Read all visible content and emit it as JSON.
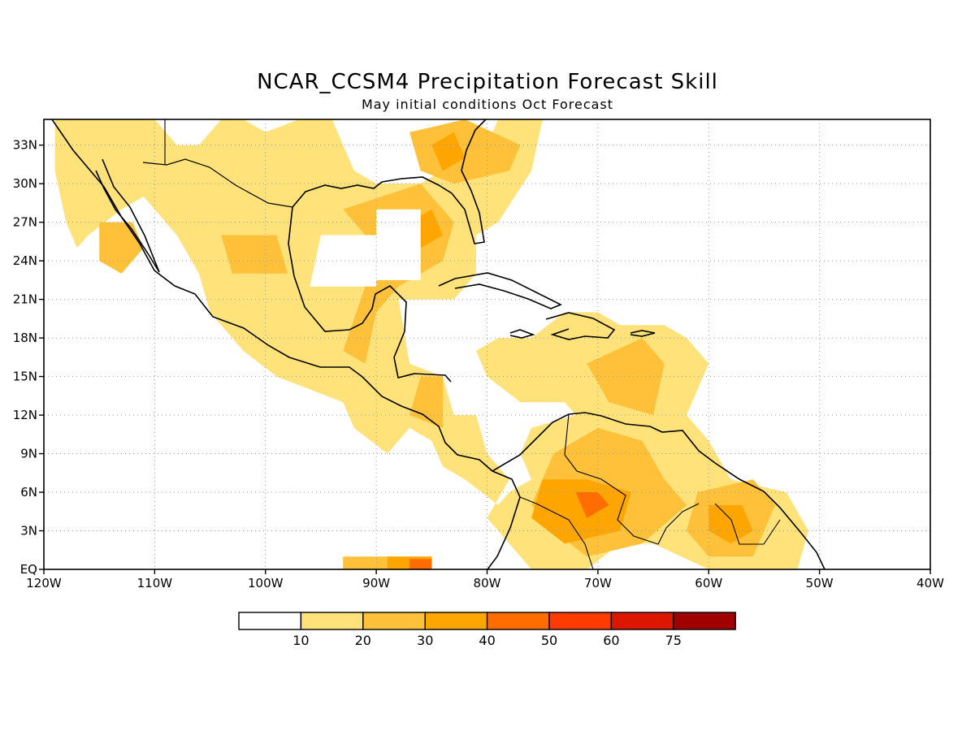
{
  "title": "NCAR_CCSM4 Precipitation Forecast Skill",
  "subtitle": "May initial conditions  Oct Forecast",
  "map": {
    "extent": {
      "lon": [
        -120,
        -40
      ],
      "lat": [
        0,
        35
      ]
    },
    "lon_ticks": [
      {
        "value": -120,
        "label": "120W"
      },
      {
        "value": -110,
        "label": "110W"
      },
      {
        "value": -100,
        "label": "100W"
      },
      {
        "value": -90,
        "label": "90W"
      },
      {
        "value": -80,
        "label": "80W"
      },
      {
        "value": -70,
        "label": "70W"
      },
      {
        "value": -60,
        "label": "60W"
      },
      {
        "value": -50,
        "label": "50W"
      },
      {
        "value": -40,
        "label": "40W"
      }
    ],
    "lat_ticks": [
      {
        "value": 0,
        "label": "EQ"
      },
      {
        "value": 3,
        "label": "3N"
      },
      {
        "value": 6,
        "label": "6N"
      },
      {
        "value": 9,
        "label": "9N"
      },
      {
        "value": 12,
        "label": "12N"
      },
      {
        "value": 15,
        "label": "15N"
      },
      {
        "value": 18,
        "label": "18N"
      },
      {
        "value": 21,
        "label": "21N"
      },
      {
        "value": 24,
        "label": "24N"
      },
      {
        "value": 27,
        "label": "27N"
      },
      {
        "value": 30,
        "label": "30N"
      },
      {
        "value": 33,
        "label": "33N"
      }
    ],
    "grid": "dotted",
    "colors": {
      "outline": "#000000",
      "grid": "#9a9a9a",
      "land_outline": "#000000"
    },
    "skill_regions": [
      {
        "level": 1,
        "coords": [
          [
            -119,
            35
          ],
          [
            -110,
            35
          ],
          [
            -108,
            33
          ],
          [
            -106,
            33
          ],
          [
            -104,
            35
          ],
          [
            -102,
            35
          ],
          [
            -100,
            34
          ],
          [
            -97,
            35
          ],
          [
            -94,
            35
          ],
          [
            -92,
            31
          ],
          [
            -90,
            30
          ],
          [
            -86,
            30
          ],
          [
            -84,
            31
          ],
          [
            -81,
            32
          ],
          [
            -80,
            33
          ],
          [
            -79,
            35
          ],
          [
            -75,
            35
          ],
          [
            -76,
            31
          ],
          [
            -79,
            27
          ],
          [
            -81,
            26
          ],
          [
            -81,
            23
          ],
          [
            -83,
            21
          ],
          [
            -88,
            21
          ],
          [
            -87,
            16
          ],
          [
            -84,
            15
          ],
          [
            -83,
            12
          ],
          [
            -81,
            12
          ],
          [
            -80,
            9
          ],
          [
            -78,
            7
          ],
          [
            -80,
            4
          ],
          [
            -78,
            2
          ],
          [
            -76,
            0
          ],
          [
            -71,
            0
          ],
          [
            -68,
            2
          ],
          [
            -65,
            2
          ],
          [
            -60,
            0
          ],
          [
            -52,
            0
          ],
          [
            -51,
            3
          ],
          [
            -53,
            6
          ],
          [
            -58,
            7
          ],
          [
            -60,
            10
          ],
          [
            -62,
            12
          ],
          [
            -61,
            14
          ],
          [
            -60,
            16
          ],
          [
            -62,
            18
          ],
          [
            -64,
            19
          ],
          [
            -68,
            19
          ],
          [
            -70,
            20
          ],
          [
            -73,
            20
          ],
          [
            -76,
            18
          ],
          [
            -79,
            18
          ],
          [
            -81,
            17
          ],
          [
            -80,
            15
          ],
          [
            -77,
            13
          ],
          [
            -73,
            13
          ],
          [
            -72,
            12
          ],
          [
            -76,
            11
          ],
          [
            -77,
            9
          ],
          [
            -76,
            7
          ],
          [
            -78,
            6
          ],
          [
            -79,
            5
          ],
          [
            -82,
            7
          ],
          [
            -84,
            8
          ],
          [
            -85,
            10
          ],
          [
            -87,
            11
          ],
          [
            -89,
            9
          ],
          [
            -92,
            11
          ],
          [
            -93,
            13
          ],
          [
            -96,
            14
          ],
          [
            -99,
            15
          ],
          [
            -102,
            17
          ],
          [
            -105,
            20
          ],
          [
            -106,
            23
          ],
          [
            -108,
            26
          ],
          [
            -111,
            29
          ],
          [
            -113,
            28
          ],
          [
            -116,
            26
          ],
          [
            -117,
            25
          ],
          [
            -118,
            27
          ],
          [
            -119,
            31
          ]
        ]
      },
      {
        "level": 2,
        "coords": [
          [
            -115,
            27
          ],
          [
            -112,
            27
          ],
          [
            -111,
            25
          ],
          [
            -113,
            23
          ],
          [
            -115,
            24
          ]
        ]
      },
      {
        "level": 2,
        "coords": [
          [
            -104,
            26
          ],
          [
            -99,
            26
          ],
          [
            -98,
            23
          ],
          [
            -103,
            23
          ]
        ]
      },
      {
        "level": 2,
        "coords": [
          [
            -93,
            28
          ],
          [
            -86,
            30
          ],
          [
            -83,
            27
          ],
          [
            -84,
            24
          ],
          [
            -88,
            22
          ],
          [
            -90,
            20
          ],
          [
            -91,
            16
          ],
          [
            -93,
            17
          ],
          [
            -91,
            22
          ],
          [
            -91,
            26
          ]
        ]
      },
      {
        "level": 2,
        "coords": [
          [
            -87,
            34
          ],
          [
            -82,
            35
          ],
          [
            -77,
            33
          ],
          [
            -78,
            31
          ],
          [
            -83,
            30
          ],
          [
            -86,
            31
          ]
        ]
      },
      {
        "level": 2,
        "coords": [
          [
            -86,
            15
          ],
          [
            -84,
            15
          ],
          [
            -84,
            11
          ],
          [
            -87,
            12
          ]
        ]
      },
      {
        "level": 2,
        "coords": [
          [
            -71,
            16
          ],
          [
            -66,
            18
          ],
          [
            -64,
            16
          ],
          [
            -65,
            12
          ],
          [
            -69,
            13
          ]
        ]
      },
      {
        "level": 2,
        "coords": [
          [
            -74,
            9
          ],
          [
            -70,
            11
          ],
          [
            -66,
            10
          ],
          [
            -64,
            7
          ],
          [
            -62,
            5
          ],
          [
            -66,
            2
          ],
          [
            -71,
            1
          ],
          [
            -74,
            3
          ],
          [
            -76,
            5
          ]
        ]
      },
      {
        "level": 2,
        "coords": [
          [
            -61,
            6
          ],
          [
            -56,
            7
          ],
          [
            -54,
            5
          ],
          [
            -56,
            1
          ],
          [
            -60,
            1
          ],
          [
            -62,
            3
          ]
        ]
      },
      {
        "level": 2,
        "coords": [
          [
            -93,
            1
          ],
          [
            -85,
            1
          ],
          [
            -85,
            0
          ],
          [
            -93,
            0
          ]
        ]
      },
      {
        "level": 3,
        "coords": [
          [
            -87,
            27
          ],
          [
            -85,
            28
          ],
          [
            -84,
            26
          ],
          [
            -86,
            25
          ]
        ]
      },
      {
        "level": 3,
        "coords": [
          [
            -85,
            33
          ],
          [
            -83,
            34
          ],
          [
            -82,
            32
          ],
          [
            -84,
            31
          ]
        ]
      },
      {
        "level": 3,
        "coords": [
          [
            -75,
            7
          ],
          [
            -71,
            7
          ],
          [
            -67,
            6
          ],
          [
            -68,
            3
          ],
          [
            -73,
            2
          ],
          [
            -76,
            4
          ]
        ]
      },
      {
        "level": 3,
        "coords": [
          [
            -60,
            5
          ],
          [
            -57,
            5
          ],
          [
            -56,
            3
          ],
          [
            -58,
            2
          ],
          [
            -60,
            3
          ]
        ]
      },
      {
        "level": 3,
        "coords": [
          [
            -89,
            1
          ],
          [
            -85,
            1
          ],
          [
            -85,
            0
          ],
          [
            -89,
            0
          ]
        ]
      },
      {
        "level": 4,
        "coords": [
          [
            -72,
            6
          ],
          [
            -70,
            6
          ],
          [
            -69,
            5
          ],
          [
            -71,
            4
          ]
        ]
      },
      {
        "level": 4,
        "coords": [
          [
            -87,
            0.8
          ],
          [
            -85,
            0.8
          ],
          [
            -85,
            0
          ],
          [
            -87,
            0
          ]
        ]
      },
      {
        "level": 0,
        "coords": [
          [
            -90,
            28
          ],
          [
            -86,
            28
          ],
          [
            -86,
            22.5
          ],
          [
            -90,
            22.5
          ]
        ]
      },
      {
        "level": 0,
        "coords": [
          [
            -95,
            26
          ],
          [
            -90,
            26
          ],
          [
            -90,
            22
          ],
          [
            -96,
            22
          ]
        ]
      }
    ]
  },
  "legend": {
    "bins": [
      {
        "color": "#ffffff",
        "label": ""
      },
      {
        "color": "#ffe27a",
        "label": "10"
      },
      {
        "color": "#ffc13a",
        "label": "20"
      },
      {
        "color": "#ffa500",
        "label": "30"
      },
      {
        "color": "#ff6d00",
        "label": "40"
      },
      {
        "color": "#ff3b00",
        "label": "50"
      },
      {
        "color": "#dd1600",
        "label": "60"
      },
      {
        "color": "#a00000",
        "label": "75"
      }
    ]
  }
}
